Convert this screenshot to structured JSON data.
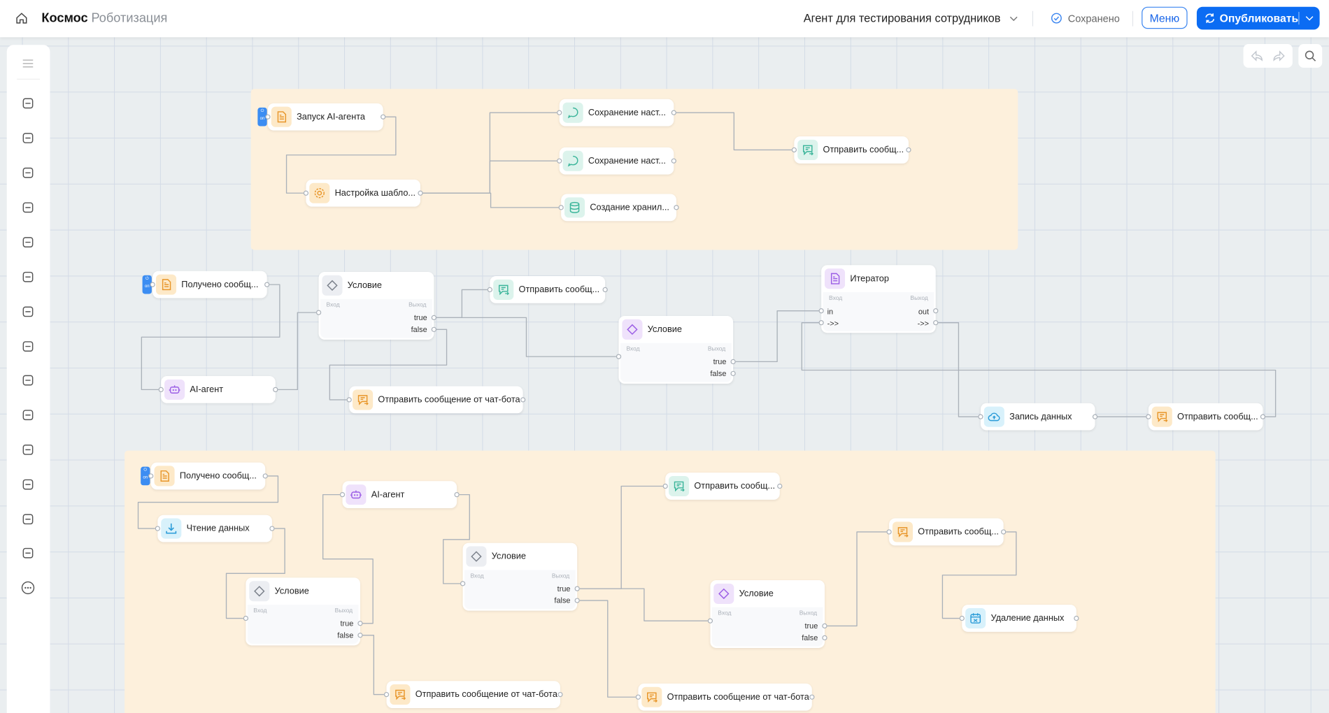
{
  "header": {
    "brand": "Космос",
    "brand_sub": "Роботизация",
    "agent_title": "Агент для тестирования сотрудников",
    "saved": "Сохранено",
    "menu": "Меню",
    "publish": "Опубликовать",
    "accent": "#0b6cf3"
  },
  "sidebar": {
    "icons": [
      "menu-icon",
      "rocket-icon",
      "layers-icon",
      "database-icon",
      "sparkles-icon",
      "integration-icon",
      "media-icon",
      "users-icon",
      "filter-icon",
      "checklist-icon",
      "contact-icon",
      "chat-icon",
      "pen-icon",
      "check-box-icon",
      "share-icon",
      "more-icon"
    ]
  },
  "toolbar": {
    "icons": [
      "undo-icon",
      "redo-icon",
      "search-icon"
    ]
  },
  "trigger_badge": "on",
  "port_labels": {
    "input": "Вход",
    "output": "Выход",
    "true": "true",
    "false": "false",
    "in": "in",
    "out": "out",
    "next": "->>"
  },
  "colors": {
    "orange": "#e8962a",
    "teal": "#3bb59a",
    "purple": "#9b5de5",
    "gray": "#7a808a",
    "blue": "#2a9bd8",
    "group": "#fdf0dc"
  },
  "nodes": [
    {
      "id": "n1",
      "label": "Запуск AI-агента",
      "icon": "doc",
      "color": "orange",
      "trigger": true
    },
    {
      "id": "n2",
      "label": "Настройка шабло...",
      "icon": "gear",
      "color": "orange"
    },
    {
      "id": "n3",
      "label": "Сохранение наст...",
      "icon": "chat",
      "color": "teal"
    },
    {
      "id": "n4",
      "label": "Сохранение наст...",
      "icon": "chat",
      "color": "teal"
    },
    {
      "id": "n5",
      "label": "Создание хранил...",
      "icon": "db",
      "color": "teal"
    },
    {
      "id": "n6",
      "label": "Отправить сообщ...",
      "icon": "msg",
      "color": "teal"
    },
    {
      "id": "n7",
      "label": "Получено сообщ...",
      "icon": "doc",
      "color": "orange",
      "trigger": true
    },
    {
      "id": "n8",
      "label": "Условие",
      "icon": "diamond",
      "color": "gray",
      "kind": "condition"
    },
    {
      "id": "n9",
      "label": "Отправить сообщ...",
      "icon": "msg",
      "color": "teal"
    },
    {
      "id": "n10",
      "label": "AI-агент",
      "icon": "robot",
      "color": "purple"
    },
    {
      "id": "n11",
      "label": "Отправить сообщение от чат-бота",
      "icon": "msg",
      "color": "orange"
    },
    {
      "id": "n12",
      "label": "Условие",
      "icon": "diamond",
      "color": "purple",
      "kind": "condition"
    },
    {
      "id": "n13",
      "label": "Итератор",
      "icon": "doc",
      "color": "purple",
      "kind": "iterator"
    },
    {
      "id": "n14",
      "label": "Запись данных",
      "icon": "cloud",
      "color": "blue"
    },
    {
      "id": "n15",
      "label": "Отправить сообщ...",
      "icon": "msg",
      "color": "orange"
    },
    {
      "id": "n16",
      "label": "Получено сообщ...",
      "icon": "doc",
      "color": "orange",
      "trigger": true
    },
    {
      "id": "n17",
      "label": "Чтение данных",
      "icon": "download",
      "color": "blue"
    },
    {
      "id": "n18",
      "label": "AI-агент",
      "icon": "robot",
      "color": "purple"
    },
    {
      "id": "n19",
      "label": "Условие",
      "icon": "diamond",
      "color": "gray",
      "kind": "condition"
    },
    {
      "id": "n20",
      "label": "Условие",
      "icon": "diamond",
      "color": "gray",
      "kind": "condition"
    },
    {
      "id": "n21",
      "label": "Отправить сообщ...",
      "icon": "msg",
      "color": "teal"
    },
    {
      "id": "n22",
      "label": "Отправить сообщ...",
      "icon": "msg",
      "color": "orange"
    },
    {
      "id": "n23",
      "label": "Условие",
      "icon": "diamond",
      "color": "purple",
      "kind": "condition"
    },
    {
      "id": "n24",
      "label": "Удаление данных",
      "icon": "calendar-x",
      "color": "blue"
    },
    {
      "id": "n25",
      "label": "Отправить сообщение от чат-бота",
      "icon": "msg",
      "color": "orange"
    },
    {
      "id": "n26",
      "label": "Отправить сообщение от чат-бота",
      "icon": "msg",
      "color": "orange"
    }
  ],
  "edges": [
    [
      "n1",
      "out",
      "n2",
      "in"
    ],
    [
      "n2",
      "out",
      "n3",
      "in"
    ],
    [
      "n2",
      "out",
      "n4",
      "in"
    ],
    [
      "n2",
      "out",
      "n5",
      "in"
    ],
    [
      "n3",
      "out",
      "n6",
      "in"
    ],
    [
      "n7",
      "out",
      "n10",
      "in"
    ],
    [
      "n10",
      "out",
      "n8",
      "in"
    ],
    [
      "n8",
      "true",
      "n9",
      "in"
    ],
    [
      "n8",
      "true",
      "n12",
      "in"
    ],
    [
      "n8",
      "false",
      "n11",
      "in"
    ],
    [
      "n12",
      "true",
      "n13",
      "in"
    ],
    [
      "n13",
      "next",
      "n14",
      "in"
    ],
    [
      "n14",
      "out",
      "n15",
      "in"
    ],
    [
      "n15",
      "out",
      "n13",
      "next"
    ],
    [
      "n16",
      "out",
      "n17",
      "in"
    ],
    [
      "n17",
      "out",
      "n19",
      "in"
    ],
    [
      "n19",
      "true",
      "n18",
      "in"
    ],
    [
      "n18",
      "out",
      "n20",
      "in"
    ],
    [
      "n19",
      "false",
      "n25",
      "in"
    ],
    [
      "n20",
      "true",
      "n21",
      "in"
    ],
    [
      "n20",
      "true",
      "n23",
      "in"
    ],
    [
      "n20",
      "false",
      "n26",
      "in"
    ],
    [
      "n23",
      "true",
      "n22",
      "in"
    ],
    [
      "n22",
      "out",
      "n24",
      "in"
    ]
  ]
}
